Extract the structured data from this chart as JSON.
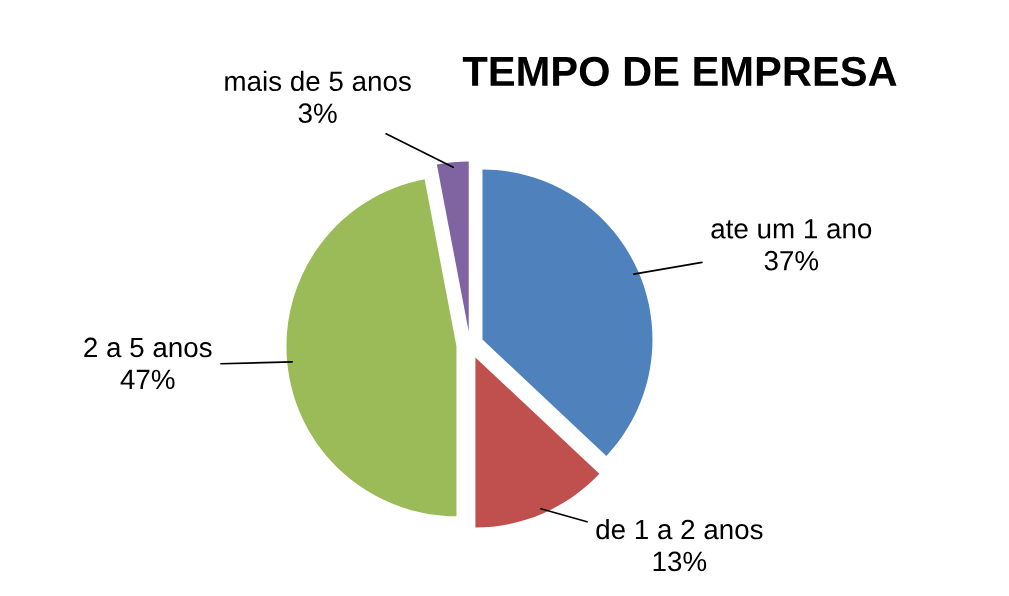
{
  "chart_data": {
    "type": "pie",
    "title": "TEMPO DE EMPRESA",
    "categories": [
      "ate um 1 ano",
      "de 1 a 2 anos",
      "2 a 5 anos",
      "mais de 5 anos"
    ],
    "values": [
      37,
      13,
      47,
      3
    ],
    "value_labels": [
      "37%",
      "13%",
      "47%",
      "3%"
    ],
    "colors": [
      "#4f81bd",
      "#c0504d",
      "#9bbb59",
      "#8064a2"
    ]
  }
}
